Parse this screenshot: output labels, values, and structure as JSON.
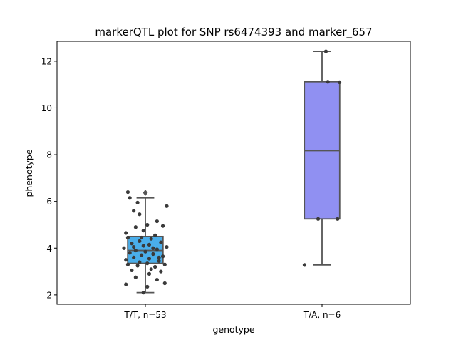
{
  "chart_data": {
    "type": "box",
    "title": "markerQTL plot for SNP rs6474393 and marker_657",
    "xlabel": "genotype",
    "ylabel": "phenotype",
    "ylim": [
      1.6,
      12.85
    ],
    "yticks": [
      2,
      4,
      6,
      8,
      10,
      12
    ],
    "grid": false,
    "legend": "none",
    "categories": [
      "T/T, n=53",
      "T/A, n=6"
    ],
    "boxes": [
      {
        "category": "T/T, n=53",
        "color": "#4aaeea",
        "q1": 3.35,
        "median": 3.9,
        "q3": 4.5,
        "whisker_low": 2.1,
        "whisker_high": 6.15,
        "outliers": [
          6.37
        ],
        "points": [
          {
            "x": -0.45,
            "y": 6.4
          },
          {
            "x": -0.4,
            "y": 6.15
          },
          {
            "x": -0.2,
            "y": 5.95
          },
          {
            "x": 0.55,
            "y": 5.8
          },
          {
            "x": -0.3,
            "y": 5.6
          },
          {
            "x": -0.15,
            "y": 5.45
          },
          {
            "x": 0.3,
            "y": 5.15
          },
          {
            "x": 0.05,
            "y": 5.0
          },
          {
            "x": 0.45,
            "y": 4.95
          },
          {
            "x": -0.25,
            "y": 4.9
          },
          {
            "x": -0.05,
            "y": 4.75
          },
          {
            "x": -0.5,
            "y": 4.65
          },
          {
            "x": 0.25,
            "y": 4.55
          },
          {
            "x": -0.45,
            "y": 4.45
          },
          {
            "x": 0.15,
            "y": 4.4
          },
          {
            "x": -0.15,
            "y": 4.3
          },
          {
            "x": 0.4,
            "y": 4.25
          },
          {
            "x": -0.35,
            "y": 4.2
          },
          {
            "x": 0.1,
            "y": 4.15
          },
          {
            "x": -0.05,
            "y": 4.1
          },
          {
            "x": 0.55,
            "y": 4.05
          },
          {
            "x": -0.55,
            "y": 4.0
          },
          {
            "x": 0.3,
            "y": 3.95
          },
          {
            "x": -0.25,
            "y": 3.9
          },
          {
            "x": 0.0,
            "y": 3.85
          },
          {
            "x": -0.4,
            "y": 3.8
          },
          {
            "x": 0.2,
            "y": 3.75
          },
          {
            "x": -0.1,
            "y": 3.7
          },
          {
            "x": 0.45,
            "y": 3.65
          },
          {
            "x": -0.3,
            "y": 3.6
          },
          {
            "x": 0.1,
            "y": 3.55
          },
          {
            "x": -0.5,
            "y": 3.5
          },
          {
            "x": 0.35,
            "y": 3.45
          },
          {
            "x": -0.15,
            "y": 3.4
          },
          {
            "x": 0.05,
            "y": 3.35
          },
          {
            "x": -0.45,
            "y": 3.3
          },
          {
            "x": 0.5,
            "y": 3.3
          },
          {
            "x": -0.2,
            "y": 3.25
          },
          {
            "x": 0.25,
            "y": 3.2
          },
          {
            "x": 0.15,
            "y": 3.1
          },
          {
            "x": -0.35,
            "y": 3.05
          },
          {
            "x": 0.4,
            "y": 3.0
          },
          {
            "x": 0.1,
            "y": 2.9
          },
          {
            "x": -0.25,
            "y": 2.75
          },
          {
            "x": 0.3,
            "y": 2.65
          },
          {
            "x": -0.5,
            "y": 2.45
          },
          {
            "x": 0.5,
            "y": 2.5
          },
          {
            "x": 0.05,
            "y": 2.35
          },
          {
            "x": -0.05,
            "y": 2.1
          },
          {
            "x": 0.2,
            "y": 4.0
          },
          {
            "x": -0.3,
            "y": 4.05
          },
          {
            "x": 0.35,
            "y": 3.6
          },
          {
            "x": -0.1,
            "y": 4.45
          }
        ]
      },
      {
        "category": "T/A, n=6",
        "color": "#9090f2",
        "q1": 5.25,
        "median": 8.17,
        "q3": 11.12,
        "whisker_low": 3.28,
        "whisker_high": 12.42,
        "outliers": [],
        "points": [
          {
            "x": 0.1,
            "y": 12.42
          },
          {
            "x": 0.15,
            "y": 11.12
          },
          {
            "x": 0.45,
            "y": 11.1
          },
          {
            "x": -0.1,
            "y": 5.25
          },
          {
            "x": 0.4,
            "y": 5.25
          },
          {
            "x": -0.45,
            "y": 3.28
          }
        ]
      }
    ]
  }
}
